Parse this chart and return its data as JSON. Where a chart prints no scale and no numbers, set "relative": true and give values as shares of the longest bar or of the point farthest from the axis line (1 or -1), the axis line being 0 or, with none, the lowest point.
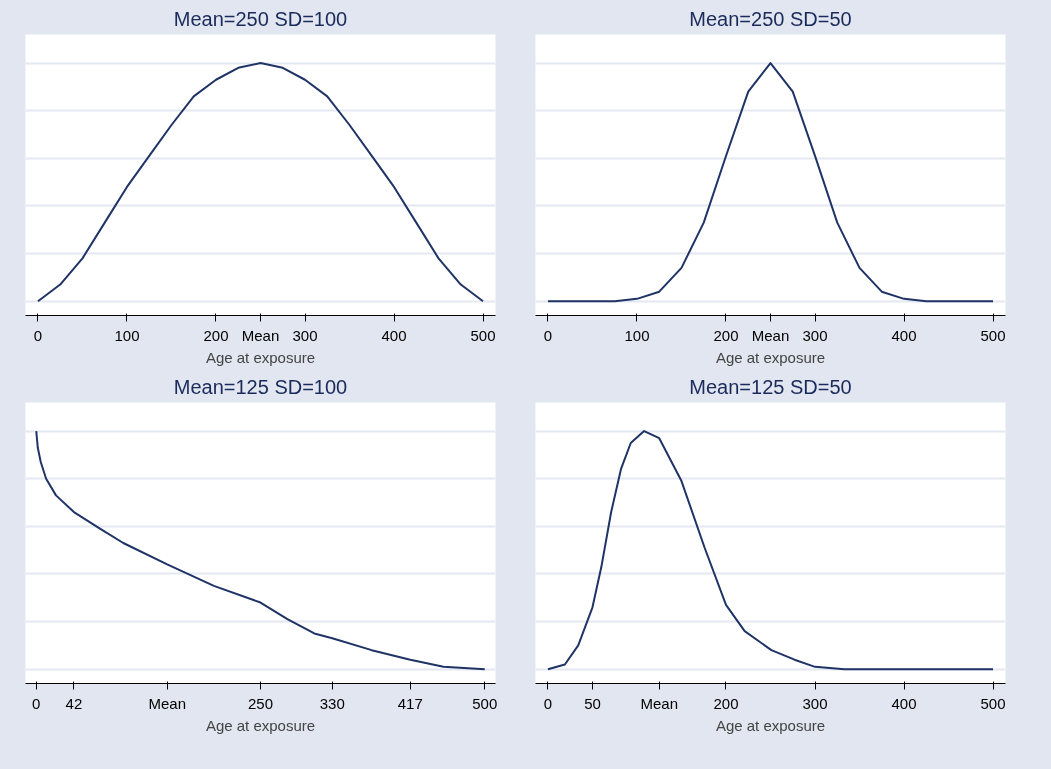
{
  "chart_data": [
    {
      "type": "line",
      "title": "Mean=250 SD=100",
      "xlabel": "Age at exposure",
      "relative": true,
      "grid": "y",
      "tick_labels": "x",
      "xlim": [
        -14,
        514
      ],
      "xticks": [
        0,
        100,
        200,
        {
          "value": 250,
          "label": "Mean"
        },
        300,
        400,
        500
      ],
      "series": [
        {
          "color": "#1f3366",
          "x": [
            0,
            25,
            50,
            75,
            100,
            125,
            150,
            175,
            200,
            225,
            250,
            275,
            300,
            325,
            350,
            375,
            400,
            425,
            450,
            475,
            500
          ],
          "values": [
            0,
            0.07,
            0.18,
            0.33,
            0.48,
            0.61,
            0.74,
            0.86,
            0.93,
            0.98,
            1,
            0.98,
            0.93,
            0.86,
            0.74,
            0.61,
            0.48,
            0.33,
            0.18,
            0.07,
            0
          ]
        }
      ]
    },
    {
      "type": "line",
      "title": "Mean=250 SD=50",
      "xlabel": "Age at exposure",
      "relative": true,
      "grid": "y",
      "tick_labels": "x",
      "xlim": [
        -14,
        514
      ],
      "xticks": [
        0,
        100,
        200,
        {
          "value": 250,
          "label": "Mean"
        },
        300,
        400,
        500
      ],
      "series": [
        {
          "color": "#1f3366",
          "x": [
            0,
            50,
            75,
            100,
            125,
            150,
            175,
            200,
            225,
            250,
            275,
            300,
            325,
            350,
            375,
            400,
            425,
            450,
            500
          ],
          "values": [
            0,
            0,
            0,
            0.01,
            0.04,
            0.14,
            0.33,
            0.61,
            0.88,
            1,
            0.88,
            0.61,
            0.33,
            0.14,
            0.04,
            0.01,
            0,
            0,
            0
          ]
        }
      ]
    },
    {
      "type": "line",
      "title": "Mean=125 SD=100",
      "xlabel": "Age at exposure",
      "relative": true,
      "grid": "y",
      "tick_labels": "x",
      "xlim": [
        -12,
        512
      ],
      "xticks": [
        0,
        42,
        {
          "value": 146,
          "label": "Mean"
        },
        250,
        330,
        417,
        500
      ],
      "series": [
        {
          "color": "#1f3366",
          "x": [
            0,
            1.7,
            5,
            11,
            22,
            42,
            71,
            97,
            146,
            198,
            250,
            280,
            310,
            330,
            374,
            417,
            454,
            500
          ],
          "values": [
            1,
            0.93,
            0.87,
            0.8,
            0.73,
            0.66,
            0.59,
            0.53,
            0.44,
            0.35,
            0.28,
            0.21,
            0.15,
            0.13,
            0.08,
            0.04,
            0.01,
            0
          ]
        }
      ]
    },
    {
      "type": "line",
      "title": "Mean=125 SD=50",
      "xlabel": "Age at exposure",
      "relative": true,
      "grid": "y",
      "tick_labels": "x",
      "xlim": [
        -14,
        514
      ],
      "xticks": [
        0,
        50,
        {
          "value": 125,
          "label": "Mean"
        },
        200,
        300,
        400,
        500
      ],
      "series": [
        {
          "color": "#1f3366",
          "x": [
            0,
            19,
            34,
            50,
            60,
            71,
            82,
            93,
            108,
            125,
            150,
            176,
            200,
            221,
            251,
            277,
            300,
            333,
            400,
            500
          ],
          "values": [
            0,
            0.02,
            0.1,
            0.26,
            0.43,
            0.66,
            0.84,
            0.95,
            1,
            0.97,
            0.79,
            0.51,
            0.27,
            0.16,
            0.08,
            0.04,
            0.01,
            0,
            0,
            0
          ]
        }
      ]
    }
  ]
}
